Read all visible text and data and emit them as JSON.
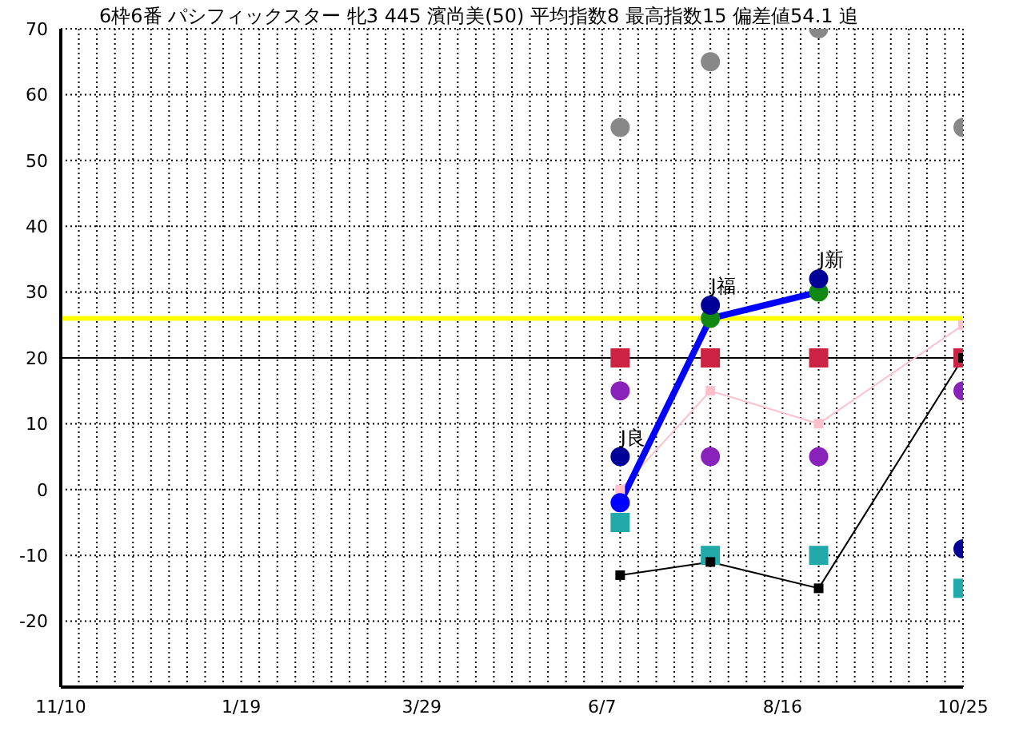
{
  "chart_data": {
    "type": "scatter",
    "title": "6枠6番 パシフィックスター 牝3 445 濱尚美(50) 平均指数8 最高指数15 偏差値54.1 追",
    "categories": [
      "11/10",
      null,
      null,
      null,
      null,
      null,
      null,
      null,
      null,
      null,
      "1/19",
      null,
      null,
      null,
      null,
      null,
      null,
      null,
      null,
      null,
      "3/29",
      null,
      null,
      null,
      null,
      null,
      null,
      null,
      null,
      null,
      "6/7",
      null,
      null,
      null,
      null,
      null,
      null,
      null,
      null,
      null,
      "8/16",
      null,
      null,
      null,
      null,
      null,
      null,
      null,
      null,
      null,
      "10/25"
    ],
    "ylim": [
      -30,
      70
    ],
    "yticks": [
      -20,
      -10,
      0,
      10,
      20,
      30,
      40,
      50,
      60,
      70
    ],
    "grid": true,
    "series": [
      {
        "color": "#888888",
        "marker": "circle",
        "values": [
          null,
          null,
          null,
          null,
          null,
          null,
          null,
          null,
          null,
          null,
          null,
          null,
          null,
          null,
          null,
          null,
          null,
          null,
          null,
          null,
          null,
          null,
          null,
          null,
          null,
          null,
          null,
          null,
          null,
          null,
          null,
          55,
          null,
          null,
          null,
          null,
          65,
          null,
          null,
          null,
          null,
          null,
          70,
          null,
          null,
          null,
          null,
          null,
          null,
          null,
          55
        ]
      },
      {
        "color": "#cc2244",
        "marker": "square",
        "values": [
          null,
          null,
          null,
          null,
          null,
          null,
          null,
          null,
          null,
          null,
          null,
          null,
          null,
          null,
          null,
          null,
          null,
          null,
          null,
          null,
          null,
          null,
          null,
          null,
          null,
          null,
          null,
          null,
          null,
          null,
          null,
          20,
          null,
          null,
          null,
          null,
          20,
          null,
          null,
          null,
          null,
          null,
          20,
          null,
          null,
          null,
          null,
          null,
          null,
          null,
          20
        ]
      },
      {
        "color": "#8822bb",
        "marker": "circle",
        "values": [
          null,
          null,
          null,
          null,
          null,
          null,
          null,
          null,
          null,
          null,
          null,
          null,
          null,
          null,
          null,
          null,
          null,
          null,
          null,
          null,
          null,
          null,
          null,
          null,
          null,
          null,
          null,
          null,
          null,
          null,
          null,
          15,
          null,
          null,
          null,
          null,
          5,
          null,
          null,
          null,
          null,
          null,
          5,
          null,
          null,
          null,
          null,
          null,
          null,
          null,
          15
        ]
      },
      {
        "type": "line",
        "color": "#ffc0cb",
        "marker": "square",
        "values": [
          null,
          null,
          null,
          null,
          null,
          null,
          null,
          null,
          null,
          null,
          null,
          null,
          null,
          null,
          null,
          null,
          null,
          null,
          null,
          null,
          null,
          null,
          null,
          null,
          null,
          null,
          null,
          null,
          null,
          null,
          null,
          0,
          null,
          null,
          null,
          null,
          15,
          null,
          null,
          null,
          null,
          null,
          10,
          null,
          null,
          null,
          null,
          null,
          null,
          null,
          25
        ]
      },
      {
        "color": "#22aaaa",
        "marker": "square",
        "values": [
          null,
          null,
          null,
          null,
          null,
          null,
          null,
          null,
          null,
          null,
          null,
          null,
          null,
          null,
          null,
          null,
          null,
          null,
          null,
          null,
          null,
          null,
          null,
          null,
          null,
          null,
          null,
          null,
          null,
          null,
          null,
          -5,
          null,
          null,
          null,
          null,
          -10,
          null,
          null,
          null,
          null,
          null,
          -10,
          null,
          null,
          null,
          null,
          null,
          null,
          null,
          -15
        ]
      },
      {
        "type": "line",
        "color": "#000000",
        "marker": "square",
        "values": [
          null,
          null,
          null,
          null,
          null,
          null,
          null,
          null,
          null,
          null,
          null,
          null,
          null,
          null,
          null,
          null,
          null,
          null,
          null,
          null,
          null,
          null,
          null,
          null,
          null,
          null,
          null,
          null,
          null,
          null,
          null,
          -13,
          null,
          null,
          null,
          null,
          -11,
          null,
          null,
          null,
          null,
          null,
          -15,
          null,
          null,
          null,
          null,
          null,
          null,
          null,
          20
        ]
      },
      {
        "type": "line",
        "color": "#0000ff",
        "marker": "none",
        "values": [
          null,
          null,
          null,
          null,
          null,
          null,
          null,
          null,
          null,
          null,
          null,
          null,
          null,
          null,
          null,
          null,
          null,
          null,
          null,
          null,
          null,
          null,
          null,
          null,
          null,
          null,
          null,
          null,
          null,
          null,
          null,
          -2,
          null,
          null,
          null,
          null,
          26,
          null,
          null,
          null,
          null,
          null,
          30,
          null,
          null,
          null,
          null,
          null,
          null,
          null,
          null
        ]
      },
      {
        "colors": [
          null,
          null,
          null,
          null,
          null,
          null,
          null,
          null,
          null,
          null,
          null,
          null,
          null,
          null,
          null,
          null,
          null,
          null,
          null,
          null,
          null,
          null,
          null,
          null,
          null,
          null,
          null,
          null,
          null,
          null,
          null,
          "#0000ff",
          null,
          null,
          null,
          null,
          "#118811",
          null,
          null,
          null,
          null,
          null,
          "#118811",
          null,
          null,
          null,
          null,
          null,
          null,
          null,
          null
        ],
        "marker": "circle",
        "values": [
          null,
          null,
          null,
          null,
          null,
          null,
          null,
          null,
          null,
          null,
          null,
          null,
          null,
          null,
          null,
          null,
          null,
          null,
          null,
          null,
          null,
          null,
          null,
          null,
          null,
          null,
          null,
          null,
          null,
          null,
          null,
          -2,
          null,
          null,
          null,
          null,
          26,
          null,
          null,
          null,
          null,
          null,
          30,
          null,
          null,
          null,
          null,
          null,
          null,
          null,
          null
        ]
      },
      {
        "color": "#000099",
        "marker": "circle",
        "values": [
          null,
          null,
          null,
          null,
          null,
          null,
          null,
          null,
          null,
          null,
          null,
          null,
          null,
          null,
          null,
          null,
          null,
          null,
          null,
          null,
          null,
          null,
          null,
          null,
          null,
          null,
          null,
          null,
          null,
          null,
          null,
          5,
          null,
          null,
          null,
          null,
          28,
          null,
          null,
          null,
          null,
          null,
          32,
          null,
          null,
          null,
          null,
          null,
          null,
          null,
          -9
        ]
      }
    ],
    "ref_lines": [
      {
        "axis": "y",
        "value": 26,
        "color": "#ffff00"
      },
      {
        "axis": "y",
        "value": 20,
        "color": "#000000"
      }
    ],
    "annotations": [
      "J良",
      "J福",
      "J新"
    ]
  }
}
